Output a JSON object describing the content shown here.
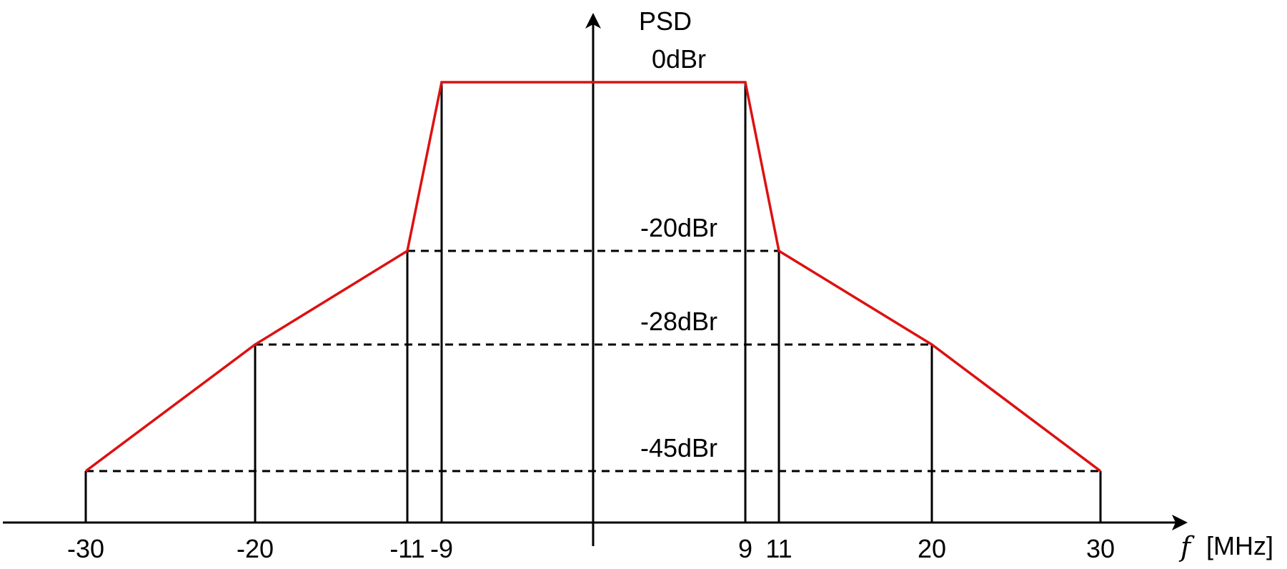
{
  "y_axis_label": "PSD",
  "x_axis": {
    "symbol": "f",
    "unit": "[MHz]"
  },
  "levels": [
    {
      "label": "0dBr",
      "db": 0
    },
    {
      "label": "-20dBr",
      "db": -20
    },
    {
      "label": "-28dBr",
      "db": -28
    },
    {
      "label": "-45dBr",
      "db": -45
    }
  ],
  "frequency_ticks": [
    {
      "label": "-30",
      "mhz": -30
    },
    {
      "label": "-20",
      "mhz": -20
    },
    {
      "label": "-11",
      "mhz": -11
    },
    {
      "label": "-9",
      "mhz": -9
    },
    {
      "label": "9",
      "mhz": 9
    },
    {
      "label": "11",
      "mhz": 11
    },
    {
      "label": "20",
      "mhz": 20
    },
    {
      "label": "30",
      "mhz": 30
    }
  ],
  "mask_points": [
    {
      "mhz": -30,
      "db": -45
    },
    {
      "mhz": -20,
      "db": -28
    },
    {
      "mhz": -11,
      "db": -20
    },
    {
      "mhz": -9,
      "db": 0
    },
    {
      "mhz": 9,
      "db": 0
    },
    {
      "mhz": 11,
      "db": -20
    },
    {
      "mhz": 20,
      "db": -28
    },
    {
      "mhz": 30,
      "db": -45
    }
  ],
  "colors": {
    "mask": "#dd1111",
    "axis": "#000000",
    "guides": "#000000"
  }
}
